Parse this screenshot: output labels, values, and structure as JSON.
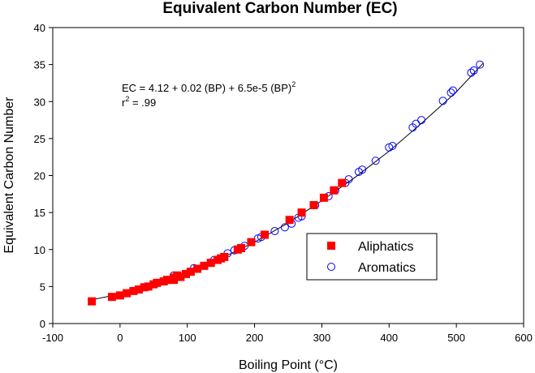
{
  "chart_data": {
    "type": "scatter",
    "title": "Equivalent Carbon Number (EC)",
    "x_label": "Boiling Point (°C)",
    "y_label": "Equivalent Carbon Number",
    "annotation": {
      "equation": [
        "EC = 4.12 + 0.02 (BP) + 6.5e-5 (BP)",
        "2"
      ],
      "r2": [
        "r",
        "2",
        " = .99"
      ]
    },
    "xlim": [
      -100,
      600
    ],
    "xticks": [
      -100,
      0,
      100,
      200,
      300,
      400,
      500,
      600
    ],
    "ylim": [
      0,
      40
    ],
    "yticks": [
      0,
      5,
      10,
      15,
      20,
      25,
      30,
      35,
      40
    ],
    "legend": "lower-right",
    "fit": {
      "color": "#000000",
      "x": [
        -42,
        0,
        50,
        100,
        150,
        200,
        250,
        300,
        350,
        400,
        450,
        500,
        540
      ],
      "values": [
        3.2,
        4.0,
        5.2,
        6.9,
        8.8,
        11.0,
        13.6,
        16.6,
        19.8,
        23.3,
        27.2,
        31.3,
        35.2
      ]
    },
    "series": [
      {
        "name": "Aliphatics",
        "color": "#ff0000",
        "marker": "square",
        "x": [
          -42,
          -12,
          0,
          10,
          20,
          28,
          36,
          42,
          50,
          55,
          65,
          70,
          80,
          85,
          80,
          90,
          98,
          105,
          115,
          125,
          135,
          145,
          150,
          155,
          175,
          180,
          195,
          215,
          252,
          270,
          288,
          303,
          318,
          330
        ],
        "values": [
          3.0,
          3.6,
          3.8,
          4.1,
          4.4,
          4.6,
          4.9,
          5.0,
          5.3,
          5.5,
          5.7,
          5.9,
          6.2,
          6.5,
          5.9,
          6.3,
          6.7,
          7.0,
          7.4,
          7.8,
          8.2,
          8.6,
          8.8,
          9.0,
          10.0,
          10.2,
          11.0,
          12.0,
          14.0,
          15.0,
          16.0,
          17.0,
          18.0,
          19.0
        ]
      },
      {
        "name": "Aromatics",
        "color": "#0000ff",
        "marker": "circle",
        "x": [
          80,
          110,
          140,
          160,
          170,
          185,
          205,
          210,
          230,
          245,
          255,
          265,
          270,
          290,
          310,
          320,
          335,
          340,
          355,
          360,
          380,
          400,
          405,
          435,
          440,
          448,
          480,
          492,
          495,
          522,
          526,
          535
        ],
        "values": [
          6.5,
          7.5,
          8.6,
          9.5,
          9.9,
          10.5,
          11.5,
          11.7,
          12.5,
          13.0,
          13.5,
          14.3,
          14.5,
          16.0,
          17.2,
          18.0,
          19.0,
          19.5,
          20.5,
          20.8,
          22.0,
          23.8,
          24.0,
          26.5,
          27.0,
          27.5,
          30.1,
          31.2,
          31.5,
          33.9,
          34.2,
          35.0
        ]
      }
    ]
  }
}
